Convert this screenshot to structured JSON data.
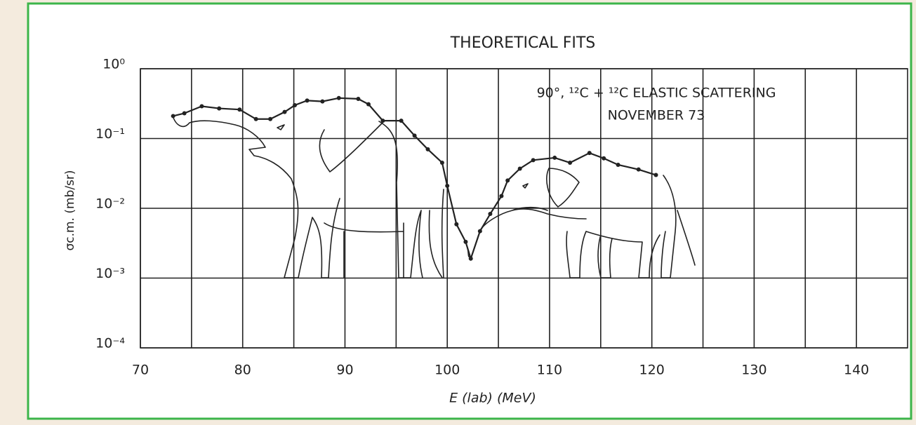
{
  "chart_data": {
    "type": "line",
    "title": "THEORETICAL FITS",
    "annotations": [
      "90°, ¹²C + ¹²C ELASTIC SCATTERING",
      "NOVEMBER 73"
    ],
    "x_label": "E (lab) (MeV)",
    "y_label": "σc.m. (mb/sr)",
    "log_y": true,
    "grid": true,
    "xlim": [
      70,
      145
    ],
    "xticks": [
      70,
      80,
      90,
      100,
      110,
      120,
      130,
      140
    ],
    "xminorticks": [
      75,
      85,
      95,
      105,
      115,
      125,
      135
    ],
    "ylim": [
      0.0001,
      1
    ],
    "yticks": [
      {
        "value": 0.0001,
        "label": "10⁻⁴"
      },
      {
        "value": 0.001,
        "label": "10⁻³"
      },
      {
        "value": 0.01,
        "label": "10⁻²"
      },
      {
        "value": 0.1,
        "label": "10⁻¹"
      },
      {
        "value": 1,
        "label": "10⁰"
      }
    ],
    "series": [
      {
        "color": "#222222",
        "x": [
          73.2,
          74.3,
          76.0,
          77.7,
          79.7,
          81.3,
          82.7,
          84.1,
          85.1,
          86.3,
          87.8,
          89.4,
          91.3,
          92.3,
          93.7,
          95.5,
          96.8,
          98.1,
          99.5,
          100.0,
          100.9,
          101.8,
          102.3,
          103.2,
          104.2,
          105.3,
          105.9,
          107.1,
          108.4,
          110.5,
          112.0,
          113.9,
          115.3,
          116.7,
          118.7,
          120.4
        ],
        "values": [
          0.21,
          0.23,
          0.29,
          0.27,
          0.26,
          0.19,
          0.19,
          0.24,
          0.3,
          0.35,
          0.34,
          0.38,
          0.37,
          0.31,
          0.18,
          0.18,
          0.11,
          0.07,
          0.045,
          0.021,
          0.0059,
          0.0033,
          0.0019,
          0.0047,
          0.0083,
          0.015,
          0.025,
          0.037,
          0.049,
          0.053,
          0.045,
          0.062,
          0.052,
          0.042,
          0.036,
          0.03
        ]
      }
    ]
  }
}
